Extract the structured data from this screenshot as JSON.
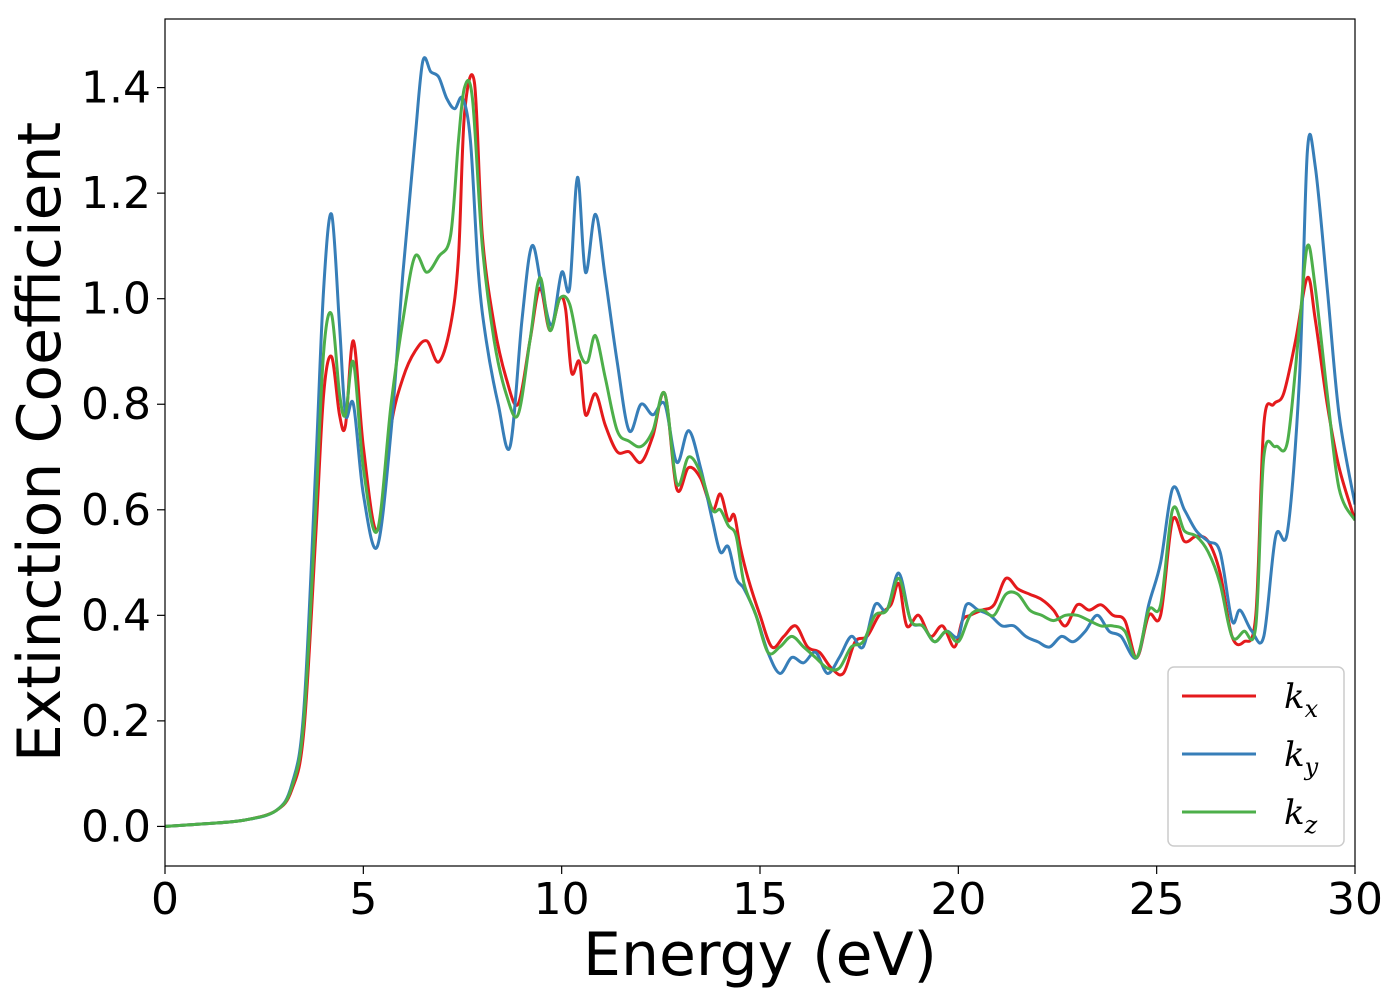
{
  "chart_data": {
    "type": "line",
    "title": "",
    "xlabel": "Energy (eV)",
    "ylabel": "Extinction Coefficient",
    "xlim": [
      0,
      30
    ],
    "ylim": [
      -0.075,
      1.53
    ],
    "xticks": [
      0,
      5,
      10,
      15,
      20,
      25,
      30
    ],
    "xtick_labels": [
      "0",
      "5",
      "10",
      "15",
      "20",
      "25",
      "30"
    ],
    "yticks": [
      0.0,
      0.2,
      0.4,
      0.6,
      0.8,
      1.0,
      1.2,
      1.4
    ],
    "ytick_labels": [
      "0.0",
      "0.2",
      "0.4",
      "0.6",
      "0.8",
      "1.0",
      "1.2",
      "1.4"
    ],
    "grid": false,
    "legend_position": "bottom-right",
    "series": [
      {
        "name": "k_x",
        "label_base": "k",
        "label_sub": "x",
        "color": "#e41a1c",
        "x": [
          0,
          1,
          2,
          2.8,
          3.2,
          3.5,
          3.8,
          4.0,
          4.2,
          4.4,
          4.55,
          4.75,
          5.0,
          5.35,
          5.7,
          6.0,
          6.3,
          6.6,
          6.9,
          7.2,
          7.4,
          7.55,
          7.8,
          8.0,
          8.3,
          8.6,
          8.9,
          9.2,
          9.45,
          9.7,
          9.95,
          10.1,
          10.25,
          10.45,
          10.6,
          10.85,
          11.1,
          11.4,
          11.7,
          12.0,
          12.3,
          12.6,
          12.9,
          13.2,
          13.5,
          13.8,
          14.0,
          14.2,
          14.35,
          14.5,
          14.7,
          15.0,
          15.3,
          15.6,
          15.9,
          16.2,
          16.5,
          16.8,
          17.1,
          17.4,
          17.7,
          18.0,
          18.3,
          18.5,
          18.7,
          19.0,
          19.3,
          19.6,
          19.9,
          20.1,
          20.3,
          20.6,
          20.9,
          21.2,
          21.5,
          21.8,
          22.1,
          22.4,
          22.7,
          23.0,
          23.3,
          23.6,
          23.9,
          24.2,
          24.5,
          24.8,
          25.1,
          25.4,
          25.7,
          26.0,
          26.3,
          26.6,
          26.9,
          27.2,
          27.5,
          27.7,
          27.95,
          28.2,
          28.5,
          28.8,
          29.0,
          29.3,
          29.6,
          30
        ],
        "y": [
          0,
          0.005,
          0.012,
          0.03,
          0.07,
          0.18,
          0.55,
          0.82,
          0.89,
          0.78,
          0.76,
          0.92,
          0.72,
          0.56,
          0.76,
          0.85,
          0.9,
          0.92,
          0.88,
          0.95,
          1.08,
          1.35,
          1.41,
          1.12,
          0.95,
          0.85,
          0.8,
          0.92,
          1.02,
          0.94,
          1.0,
          0.98,
          0.86,
          0.88,
          0.78,
          0.82,
          0.76,
          0.71,
          0.71,
          0.69,
          0.74,
          0.82,
          0.64,
          0.68,
          0.66,
          0.6,
          0.63,
          0.58,
          0.59,
          0.53,
          0.47,
          0.4,
          0.34,
          0.36,
          0.38,
          0.34,
          0.33,
          0.3,
          0.29,
          0.35,
          0.36,
          0.4,
          0.42,
          0.46,
          0.38,
          0.4,
          0.36,
          0.38,
          0.34,
          0.39,
          0.4,
          0.41,
          0.42,
          0.47,
          0.45,
          0.44,
          0.43,
          0.41,
          0.38,
          0.42,
          0.41,
          0.42,
          0.4,
          0.39,
          0.32,
          0.4,
          0.4,
          0.58,
          0.54,
          0.55,
          0.54,
          0.48,
          0.36,
          0.35,
          0.4,
          0.76,
          0.8,
          0.82,
          0.92,
          1.04,
          0.96,
          0.8,
          0.68,
          0.58
        ]
      },
      {
        "name": "k_y",
        "label_base": "k",
        "label_sub": "y",
        "color": "#377eb8",
        "x": [
          0,
          1,
          2,
          2.8,
          3.2,
          3.5,
          3.8,
          4.0,
          4.2,
          4.4,
          4.55,
          4.75,
          5.0,
          5.35,
          5.7,
          6.0,
          6.3,
          6.5,
          6.7,
          6.9,
          7.1,
          7.3,
          7.5,
          7.7,
          7.9,
          8.1,
          8.4,
          8.7,
          9.0,
          9.25,
          9.5,
          9.75,
          10.0,
          10.2,
          10.4,
          10.6,
          10.85,
          11.1,
          11.4,
          11.7,
          12.0,
          12.3,
          12.6,
          12.9,
          13.2,
          13.5,
          13.8,
          14.0,
          14.2,
          14.4,
          14.6,
          14.9,
          15.2,
          15.5,
          15.8,
          16.1,
          16.4,
          16.7,
          17.0,
          17.3,
          17.6,
          17.9,
          18.2,
          18.5,
          18.8,
          19.1,
          19.4,
          19.7,
          20.0,
          20.2,
          20.5,
          20.8,
          21.1,
          21.4,
          21.7,
          22.0,
          22.3,
          22.6,
          22.9,
          23.2,
          23.5,
          23.8,
          24.1,
          24.5,
          24.8,
          25.1,
          25.4,
          25.7,
          26.0,
          26.3,
          26.6,
          26.9,
          27.1,
          27.4,
          27.7,
          28.0,
          28.3,
          28.6,
          28.8,
          29.0,
          29.3,
          29.6,
          30
        ],
        "y": [
          0,
          0.005,
          0.012,
          0.03,
          0.08,
          0.22,
          0.68,
          1.02,
          1.16,
          0.95,
          0.78,
          0.8,
          0.63,
          0.53,
          0.75,
          1.05,
          1.3,
          1.45,
          1.43,
          1.42,
          1.38,
          1.36,
          1.38,
          1.3,
          1.05,
          0.92,
          0.8,
          0.72,
          0.96,
          1.1,
          1.02,
          0.95,
          1.05,
          1.02,
          1.23,
          1.05,
          1.16,
          1.04,
          0.88,
          0.75,
          0.8,
          0.78,
          0.8,
          0.69,
          0.75,
          0.68,
          0.58,
          0.52,
          0.53,
          0.47,
          0.45,
          0.4,
          0.33,
          0.29,
          0.32,
          0.31,
          0.33,
          0.29,
          0.32,
          0.36,
          0.34,
          0.42,
          0.41,
          0.48,
          0.39,
          0.38,
          0.35,
          0.37,
          0.36,
          0.42,
          0.41,
          0.4,
          0.38,
          0.38,
          0.36,
          0.35,
          0.34,
          0.36,
          0.35,
          0.37,
          0.4,
          0.37,
          0.36,
          0.32,
          0.42,
          0.5,
          0.64,
          0.6,
          0.56,
          0.54,
          0.52,
          0.39,
          0.41,
          0.37,
          0.36,
          0.55,
          0.56,
          0.85,
          1.28,
          1.25,
          1.02,
          0.78,
          0.61
        ]
      },
      {
        "name": "k_z",
        "label_base": "k",
        "label_sub": "z",
        "color": "#4daf4a",
        "x": [
          0,
          1,
          2,
          2.8,
          3.2,
          3.5,
          3.8,
          4.0,
          4.2,
          4.4,
          4.55,
          4.75,
          5.0,
          5.35,
          5.7,
          6.0,
          6.3,
          6.6,
          6.9,
          7.2,
          7.4,
          7.55,
          7.75,
          8.0,
          8.3,
          8.6,
          8.9,
          9.2,
          9.45,
          9.7,
          9.95,
          10.2,
          10.45,
          10.65,
          10.85,
          11.1,
          11.4,
          11.7,
          12.0,
          12.3,
          12.6,
          12.9,
          13.2,
          13.5,
          13.8,
          14.0,
          14.2,
          14.4,
          14.6,
          14.9,
          15.2,
          15.5,
          15.8,
          16.1,
          16.4,
          16.7,
          17.0,
          17.3,
          17.6,
          17.9,
          18.2,
          18.5,
          18.8,
          19.1,
          19.4,
          19.7,
          20.0,
          20.3,
          20.6,
          20.9,
          21.2,
          21.5,
          21.8,
          22.1,
          22.4,
          22.7,
          23.0,
          23.3,
          23.6,
          23.9,
          24.2,
          24.5,
          24.8,
          25.1,
          25.4,
          25.7,
          26.0,
          26.3,
          26.6,
          26.9,
          27.2,
          27.5,
          27.7,
          28.0,
          28.3,
          28.6,
          28.8,
          29.0,
          29.3,
          29.6,
          30
        ],
        "y": [
          0,
          0.005,
          0.012,
          0.03,
          0.075,
          0.2,
          0.6,
          0.9,
          0.97,
          0.82,
          0.78,
          0.88,
          0.68,
          0.56,
          0.8,
          0.96,
          1.08,
          1.05,
          1.08,
          1.12,
          1.3,
          1.4,
          1.38,
          1.1,
          0.92,
          0.82,
          0.78,
          0.92,
          1.04,
          0.94,
          1.0,
          0.99,
          0.9,
          0.88,
          0.93,
          0.85,
          0.75,
          0.73,
          0.72,
          0.75,
          0.82,
          0.65,
          0.7,
          0.67,
          0.6,
          0.6,
          0.57,
          0.55,
          0.46,
          0.4,
          0.33,
          0.34,
          0.36,
          0.34,
          0.32,
          0.3,
          0.3,
          0.34,
          0.35,
          0.4,
          0.41,
          0.47,
          0.39,
          0.38,
          0.35,
          0.37,
          0.35,
          0.4,
          0.41,
          0.4,
          0.44,
          0.44,
          0.41,
          0.4,
          0.39,
          0.4,
          0.4,
          0.39,
          0.38,
          0.38,
          0.37,
          0.32,
          0.41,
          0.42,
          0.6,
          0.56,
          0.55,
          0.52,
          0.46,
          0.36,
          0.37,
          0.38,
          0.7,
          0.72,
          0.73,
          0.95,
          1.1,
          1.02,
          0.82,
          0.64,
          0.58
        ]
      }
    ]
  }
}
